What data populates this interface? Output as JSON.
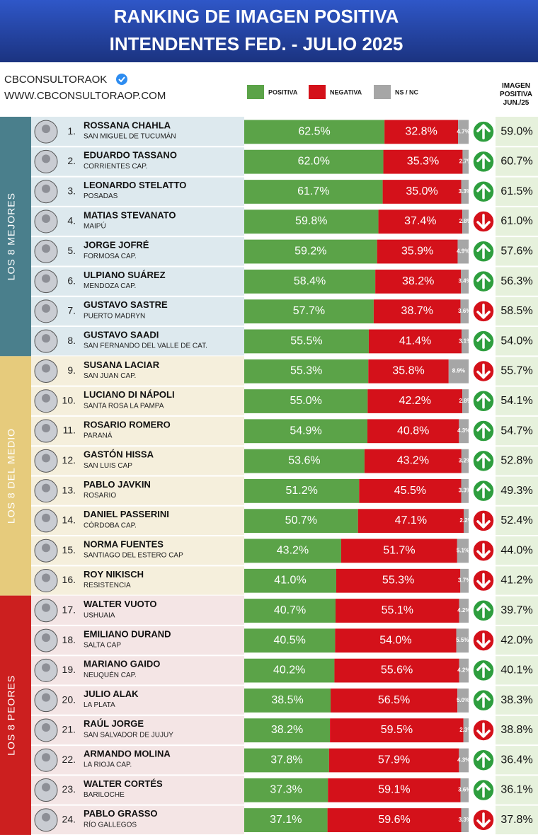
{
  "header": {
    "title_line1": "RANKING DE IMAGEN POSITIVA",
    "title_line2": "INTENDENTES FED. - JULIO 2025",
    "brand": "CBCONSULTORAOK",
    "website": "WWW.CBCONSULTORAOP.COM",
    "previous_header": "IMAGEN POSITIVA JUN./25"
  },
  "chart_data": [
    {
      "type": "bar",
      "orientation": "horizontal",
      "stacked": true,
      "title": "LOS 8 MEJORES",
      "color": "#4a7f8c",
      "row_color": "#dde9ee",
      "ranks": [
        "1.",
        "2.",
        "3.",
        "4.",
        "5.",
        "6.",
        "7.",
        "8."
      ],
      "categories": [
        "ROSSANA CHAHLA",
        "EDUARDO TASSANO",
        "LEONARDO STELATTO",
        "MATIAS STEVANATO",
        "JORGE JOFRÉ",
        "ULPIANO SUÁREZ",
        "GUSTAVO SASTRE",
        "GUSTAVO SAADI"
      ],
      "subtitles": [
        "SAN MIGUEL DE TUCUMÁN",
        "CORRIENTES CAP.",
        "POSADAS",
        "MAIPÚ",
        "FORMOSA CAP.",
        "MENDOZA CAP.",
        "PUERTO MADRYN",
        "SAN FERNANDO DEL VALLE DE CAT."
      ],
      "xlim": [
        0,
        100
      ],
      "series": [
        {
          "name": "POSITIVA",
          "color": "#5ba348",
          "values": [
            62.5,
            62.0,
            61.7,
            59.8,
            59.2,
            58.4,
            57.7,
            55.5
          ],
          "value_labels": [
            "62.5%",
            "62.0%",
            "61.7%",
            "59.8%",
            "59.2%",
            "58.4%",
            "57.7%",
            "55.5%"
          ]
        },
        {
          "name": "NEGATIVA",
          "color": "#d4111a",
          "values": [
            32.8,
            35.3,
            35.0,
            37.4,
            35.9,
            38.2,
            38.7,
            41.4
          ],
          "value_labels": [
            "32.8%",
            "35.3%",
            "35.0%",
            "37.4%",
            "35.9%",
            "38.2%",
            "38.7%",
            "41.4%"
          ]
        },
        {
          "name": "NS / NC",
          "color": "#a6a6a6",
          "values": [
            4.7,
            2.7,
            3.3,
            2.8,
            4.9,
            3.4,
            3.6,
            3.1
          ],
          "value_labels": [
            "4.7%",
            "2.7%",
            "3.3%",
            "2.8%",
            "4.9%",
            "3.4%",
            "3.6%",
            "3.1%"
          ]
        }
      ],
      "trend": [
        "up",
        "up",
        "up",
        "down",
        "up",
        "up",
        "down",
        "up"
      ],
      "previous_values": [
        59.0,
        60.7,
        61.5,
        61.0,
        57.6,
        56.3,
        58.5,
        54.0
      ],
      "previous_labels": [
        "59.0%",
        "60.7%",
        "61.5%",
        "61.0%",
        "57.6%",
        "56.3%",
        "58.5%",
        "54.0%"
      ]
    },
    {
      "type": "bar",
      "orientation": "horizontal",
      "stacked": true,
      "title": "LOS 8 DEL MEDIO",
      "color": "#e6cb7c",
      "row_color": "#f5efdc",
      "ranks": [
        "9.",
        "10.",
        "11.",
        "12.",
        "13.",
        "14.",
        "15.",
        "16."
      ],
      "categories": [
        "SUSANA LACIAR",
        "LUCIANO DI NÁPOLI",
        "ROSARIO ROMERO",
        "GASTÓN HISSA",
        "PABLO JAVKIN",
        "DANIEL PASSERINI",
        "NORMA FUENTES",
        "ROY NIKISCH"
      ],
      "subtitles": [
        "SAN JUAN CAP.",
        "SANTA ROSA LA PAMPA",
        "PARANÁ",
        "SAN LUIS CAP",
        "ROSARIO",
        "CÓRDOBA CAP.",
        "SANTIAGO DEL ESTERO CAP",
        "RESISTENCIA"
      ],
      "xlim": [
        0,
        100
      ],
      "series": [
        {
          "name": "POSITIVA",
          "color": "#5ba348",
          "values": [
            55.3,
            55.0,
            54.9,
            53.6,
            51.2,
            50.7,
            43.2,
            41.0
          ],
          "value_labels": [
            "55.3%",
            "55.0%",
            "54.9%",
            "53.6%",
            "51.2%",
            "50.7%",
            "43.2%",
            "41.0%"
          ]
        },
        {
          "name": "NEGATIVA",
          "color": "#d4111a",
          "values": [
            35.8,
            42.2,
            40.8,
            43.2,
            45.5,
            47.1,
            51.7,
            55.3
          ],
          "value_labels": [
            "35.8%",
            "42.2%",
            "40.8%",
            "43.2%",
            "45.5%",
            "47.1%",
            "51.7%",
            "55.3%"
          ]
        },
        {
          "name": "NS / NC",
          "color": "#a6a6a6",
          "values": [
            8.9,
            2.8,
            4.3,
            3.2,
            3.3,
            2.2,
            5.1,
            3.7
          ],
          "value_labels": [
            "8.9%",
            "2.8%",
            "4.3%",
            "3.2%",
            "3.3%",
            "2.2%",
            "5.1%",
            "3.7%"
          ]
        }
      ],
      "trend": [
        "down",
        "up",
        "up",
        "up",
        "up",
        "down",
        "down",
        "down"
      ],
      "previous_values": [
        55.7,
        54.1,
        54.7,
        52.8,
        49.3,
        52.4,
        44.0,
        41.2
      ],
      "previous_labels": [
        "55.7%",
        "54.1%",
        "54.7%",
        "52.8%",
        "49.3%",
        "52.4%",
        "44.0%",
        "41.2%"
      ]
    },
    {
      "type": "bar",
      "orientation": "horizontal",
      "stacked": true,
      "title": "LOS 8 PEORES",
      "color": "#cc1f1f",
      "row_color": "#f4e5e5",
      "ranks": [
        "17.",
        "18.",
        "19.",
        "20.",
        "21.",
        "22.",
        "23.",
        "24."
      ],
      "categories": [
        "WALTER VUOTO",
        "EMILIANO DURAND",
        "MARIANO GAIDO",
        "JULIO ALAK",
        "RAÚL JORGE",
        "ARMANDO MOLINA",
        "WALTER CORTÉS",
        "PABLO GRASSO"
      ],
      "subtitles": [
        "USHUAIA",
        "SALTA CAP",
        "NEUQUÉN CAP.",
        "LA PLATA",
        "SAN SALVADOR DE JUJUY",
        "LA RIOJA CAP.",
        "BARILOCHE",
        "RÍO GALLEGOS"
      ],
      "xlim": [
        0,
        100
      ],
      "series": [
        {
          "name": "POSITIVA",
          "color": "#5ba348",
          "values": [
            40.7,
            40.5,
            40.2,
            38.5,
            38.2,
            37.8,
            37.3,
            37.1
          ],
          "value_labels": [
            "40.7%",
            "40.5%",
            "40.2%",
            "38.5%",
            "38.2%",
            "37.8%",
            "37.3%",
            "37.1%"
          ]
        },
        {
          "name": "NEGATIVA",
          "color": "#d4111a",
          "values": [
            55.1,
            54.0,
            55.6,
            56.5,
            59.5,
            57.9,
            59.1,
            59.6
          ],
          "value_labels": [
            "55.1%",
            "54.0%",
            "55.6%",
            "56.5%",
            "59.5%",
            "57.9%",
            "59.1%",
            "59.6%"
          ]
        },
        {
          "name": "NS / NC",
          "color": "#a6a6a6",
          "values": [
            4.2,
            5.5,
            4.2,
            5.0,
            2.3,
            4.3,
            3.6,
            3.3
          ],
          "value_labels": [
            "4.2%",
            "5.5%",
            "4.2%",
            "5.0%",
            "2.3%",
            "4.3%",
            "3.6%",
            "3.3%"
          ]
        }
      ],
      "trend": [
        "up",
        "down",
        "up",
        "up",
        "down",
        "up",
        "up",
        "down"
      ],
      "previous_values": [
        39.7,
        42.0,
        40.1,
        38.3,
        38.8,
        36.4,
        36.1,
        37.8
      ],
      "previous_labels": [
        "39.7%",
        "42.0%",
        "40.1%",
        "38.3%",
        "38.8%",
        "36.4%",
        "36.1%",
        "37.8%"
      ]
    }
  ]
}
